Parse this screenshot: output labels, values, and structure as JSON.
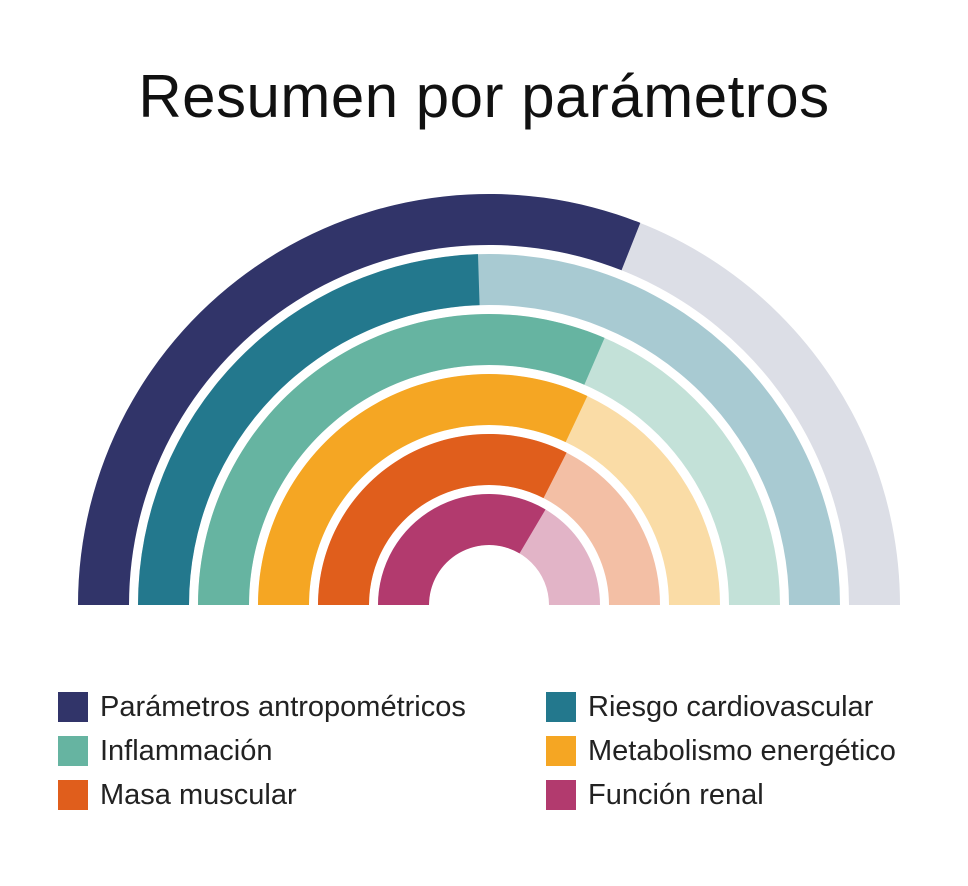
{
  "chart_data": {
    "type": "radial-bar",
    "title": "Resumen por parámetros",
    "value_range": [
      0,
      1
    ],
    "series": [
      {
        "name": "Parámetros antropométricos",
        "value": 0.62,
        "color": "#313469",
        "track_color": "#dcdee6"
      },
      {
        "name": "Riesgo cardiovascular",
        "value": 0.49,
        "color": "#23788d",
        "track_color": "#a8cad2"
      },
      {
        "name": "Inflammación",
        "value": 0.63,
        "color": "#66b4a1",
        "track_color": "#c3e1d8"
      },
      {
        "name": "Metabolismo energético",
        "value": 0.64,
        "color": "#f5a623",
        "track_color": "#fadca6"
      },
      {
        "name": "Masa muscular",
        "value": 0.65,
        "color": "#e05e1c",
        "track_color": "#f3bfa5"
      },
      {
        "name": "Función renal",
        "value": 0.67,
        "color": "#b23a6e",
        "track_color": "#e2b4c7"
      }
    ],
    "legend_position": "bottom"
  }
}
